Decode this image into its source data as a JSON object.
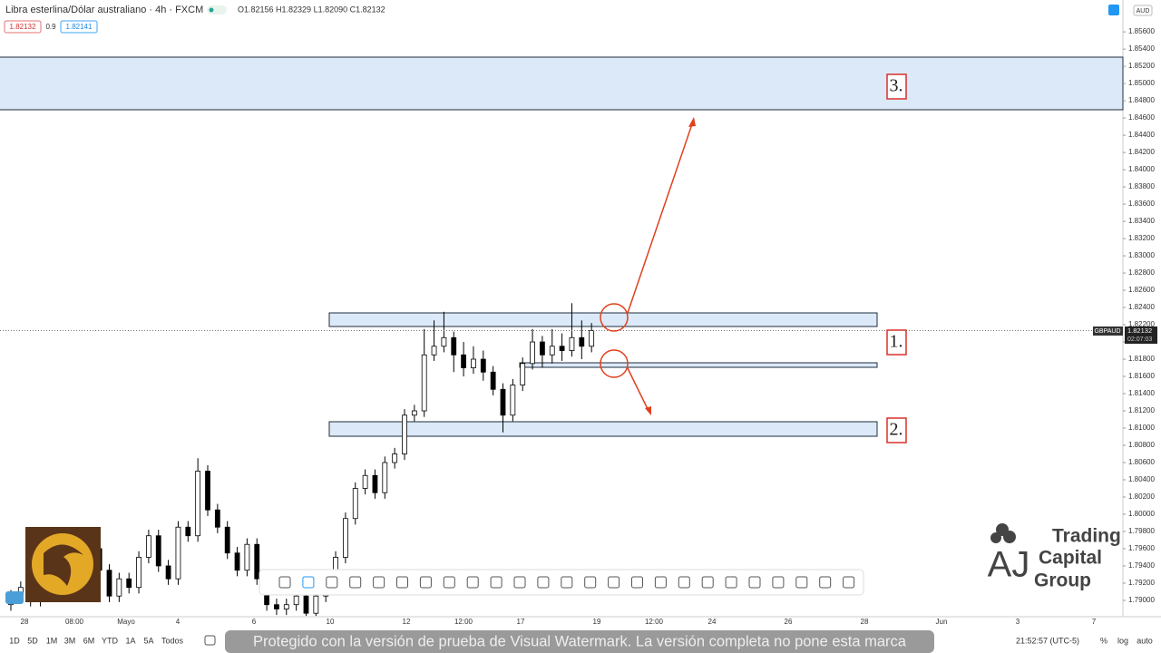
{
  "header": {
    "symbol": "Libra esterlina/Dólar australiano · 4h · FXCM",
    "ohlc": "O1.82156 H1.82329 L1.82090 C1.82132",
    "bid": "1.82132",
    "spread": "0.9",
    "ask": "1.82141",
    "currency": "AUD"
  },
  "price_tag": {
    "symbol": "GBPAUD",
    "price": "1.82132",
    "countdown": "02:07:03"
  },
  "annotations": {
    "zone1": "1.",
    "zone2": "2.",
    "zone3": "3."
  },
  "x_labels": [
    "28",
    "08:00",
    "Mayo",
    "4",
    "6",
    "10",
    "12",
    "12:00",
    "17",
    "19",
    "12:00",
    "24",
    "26",
    "28",
    "Jun",
    "3",
    "7"
  ],
  "ranges": [
    "1D",
    "5D",
    "1M",
    "3M",
    "6M",
    "YTD",
    "1A",
    "5A",
    "Todos"
  ],
  "watermark": "Protegido con la versión de prueba de Visual Watermark. La versión completa no pone esta marca",
  "clock": "21:52:57 (UTC-5)",
  "scale_buttons": [
    "%",
    "log",
    "auto"
  ],
  "logo": [
    "Trading",
    "Capital",
    "Group"
  ],
  "chart_data": {
    "type": "candlestick",
    "open": [
      1.7895,
      1.7905,
      1.7915,
      1.79,
      1.7925,
      1.791,
      1.7935,
      1.792,
      1.7945,
      1.796,
      1.7935,
      1.7905,
      1.7925,
      1.7915,
      1.795,
      1.7975,
      1.794,
      1.7925,
      1.7985,
      1.7975,
      1.805,
      1.8005,
      1.7985,
      1.7955,
      1.7935,
      1.7965,
      1.7925,
      1.7895,
      1.789,
      1.7895,
      1.7905,
      1.7885,
      1.7905,
      1.7925,
      1.795,
      1.7995,
      1.803,
      1.8045,
      1.8025,
      1.806,
      1.807,
      1.8115,
      1.812,
      1.8185,
      1.8195,
      1.8205,
      1.8185,
      1.817,
      1.818,
      1.8165,
      1.8145,
      1.8115,
      1.815,
      1.8175,
      1.82,
      1.8185,
      1.8195,
      1.819,
      1.8205,
      1.8195
    ],
    "high": [
      1.7912,
      1.7922,
      1.7922,
      1.7932,
      1.7932,
      1.7942,
      1.7942,
      1.7952,
      1.7967,
      1.7967,
      1.7942,
      1.7932,
      1.7932,
      1.7957,
      1.7982,
      1.7982,
      1.7947,
      1.7992,
      1.7992,
      1.8065,
      1.8057,
      1.8012,
      1.7992,
      1.7962,
      1.7972,
      1.7972,
      1.7932,
      1.7902,
      1.7902,
      1.7912,
      1.7912,
      1.7912,
      1.7932,
      1.7957,
      1.8002,
      1.8037,
      1.8052,
      1.8052,
      1.8067,
      1.8077,
      1.8122,
      1.8127,
      1.8215,
      1.8225,
      1.8235,
      1.8212,
      1.82,
      1.8195,
      1.819,
      1.8172,
      1.8152,
      1.8157,
      1.8182,
      1.8215,
      1.8207,
      1.8215,
      1.821,
      1.8245,
      1.8225,
      1.8222
    ],
    "low": [
      1.7888,
      1.7898,
      1.7893,
      1.7893,
      1.7903,
      1.7903,
      1.7913,
      1.7913,
      1.7938,
      1.7928,
      1.7898,
      1.7898,
      1.7908,
      1.7908,
      1.7943,
      1.7933,
      1.7918,
      1.7918,
      1.7968,
      1.7968,
      1.7998,
      1.7978,
      1.7948,
      1.7928,
      1.7928,
      1.7918,
      1.7888,
      1.7883,
      1.7883,
      1.7888,
      1.7882,
      1.7882,
      1.7898,
      1.7918,
      1.7943,
      1.7988,
      1.8023,
      1.8018,
      1.8018,
      1.8053,
      1.8063,
      1.8108,
      1.8113,
      1.8178,
      1.8188,
      1.8165,
      1.816,
      1.8163,
      1.8155,
      1.8138,
      1.8095,
      1.8108,
      1.8143,
      1.8168,
      1.817,
      1.8175,
      1.8178,
      1.8183,
      1.818,
      1.8188
    ],
    "close": [
      1.7905,
      1.7915,
      1.79,
      1.7925,
      1.791,
      1.7935,
      1.792,
      1.7945,
      1.796,
      1.7935,
      1.7905,
      1.7925,
      1.7915,
      1.795,
      1.7975,
      1.794,
      1.7925,
      1.7985,
      1.7975,
      1.805,
      1.8005,
      1.7985,
      1.7955,
      1.7935,
      1.7965,
      1.7925,
      1.7895,
      1.789,
      1.7895,
      1.7905,
      1.7885,
      1.7905,
      1.7925,
      1.795,
      1.7995,
      1.803,
      1.8045,
      1.8025,
      1.806,
      1.807,
      1.8115,
      1.812,
      1.8185,
      1.8195,
      1.8205,
      1.8185,
      1.817,
      1.818,
      1.8165,
      1.8145,
      1.8115,
      1.815,
      1.8175,
      1.82,
      1.8185,
      1.8195,
      1.819,
      1.8205,
      1.8195,
      1.82132
    ],
    "ylim": [
      1.7881,
      1.8597
    ],
    "yticks": [
      {
        "value": 1.856,
        "label": "1.85600"
      },
      {
        "value": 1.854,
        "label": "1.85400"
      },
      {
        "value": 1.852,
        "label": "1.85200"
      },
      {
        "value": 1.85,
        "label": "1.85000"
      },
      {
        "value": 1.848,
        "label": "1.84800"
      },
      {
        "value": 1.846,
        "label": "1.84600"
      },
      {
        "value": 1.844,
        "label": "1.84400"
      },
      {
        "value": 1.842,
        "label": "1.84200"
      },
      {
        "value": 1.84,
        "label": "1.84000"
      },
      {
        "value": 1.838,
        "label": "1.83800"
      },
      {
        "value": 1.836,
        "label": "1.83600"
      },
      {
        "value": 1.834,
        "label": "1.83400"
      },
      {
        "value": 1.832,
        "label": "1.83200"
      },
      {
        "value": 1.83,
        "label": "1.83000"
      },
      {
        "value": 1.828,
        "label": "1.82800"
      },
      {
        "value": 1.826,
        "label": "1.82600"
      },
      {
        "value": 1.824,
        "label": "1.82400"
      },
      {
        "value": 1.822,
        "label": "1.82200"
      },
      {
        "value": 1.82,
        "label": "1.82000"
      },
      {
        "value": 1.818,
        "label": "1.81800"
      },
      {
        "value": 1.816,
        "label": "1.81600"
      },
      {
        "value": 1.814,
        "label": "1.81400"
      },
      {
        "value": 1.812,
        "label": "1.81200"
      },
      {
        "value": 1.81,
        "label": "1.81000"
      },
      {
        "value": 1.808,
        "label": "1.80800"
      },
      {
        "value": 1.806,
        "label": "1.80600"
      },
      {
        "value": 1.804,
        "label": "1.80400"
      },
      {
        "value": 1.802,
        "label": "1.80200"
      },
      {
        "value": 1.8,
        "label": "1.80000"
      },
      {
        "value": 1.798,
        "label": "1.79800"
      },
      {
        "value": 1.796,
        "label": "1.79600"
      },
      {
        "value": 1.794,
        "label": "1.79400"
      },
      {
        "value": 1.792,
        "label": "1.79200"
      },
      {
        "value": 1.79,
        "label": "1.79000"
      }
    ],
    "up_color": "#ffffff",
    "down_color": "#000000",
    "wick_color": "#000000"
  }
}
